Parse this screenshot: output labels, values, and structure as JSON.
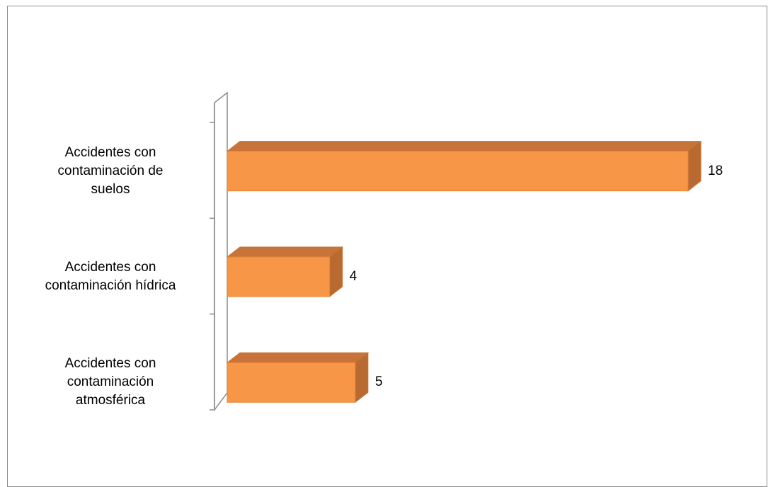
{
  "chart_data": {
    "type": "bar",
    "orientation": "horizontal",
    "style": "3d",
    "categories": [
      "Accidentes con contaminación de suelos",
      "Accidentes con contaminación hídrica",
      "Accidentes con contaminación atmosférica"
    ],
    "category_lines": [
      [
        "Accidentes con",
        "contaminación de",
        "suelos"
      ],
      [
        "Accidentes con",
        "contaminación hídrica"
      ],
      [
        "Accidentes con",
        "contaminación",
        "atmosférica"
      ]
    ],
    "values": [
      18,
      4,
      5
    ],
    "value_labels": [
      "18",
      "4",
      "5"
    ],
    "xlim": [
      0,
      18
    ],
    "grid": false,
    "legend": "none",
    "colors": {
      "bar_front": "#F79646",
      "bar_top": "#C8733A",
      "bar_side": "#B86A30",
      "bar_edge": "#C67232",
      "axis": "#8c8c8c"
    }
  }
}
